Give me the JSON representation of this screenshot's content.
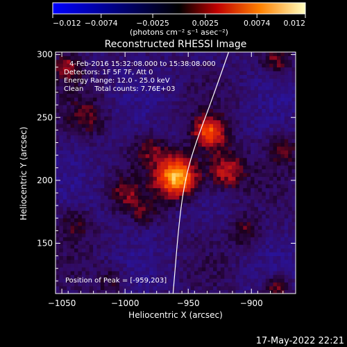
{
  "chart_data": {
    "type": "heatmap",
    "title": "Reconstructed RHESSI Image",
    "xlabel": "Heliocentric X (arcsec)",
    "ylabel": "Heliocentric Y (arcsec)",
    "xlim": [
      -1055,
      -865
    ],
    "ylim": [
      110,
      302
    ],
    "x_ticks": [
      {
        "value": -1050,
        "label": "−1050"
      },
      {
        "value": -1000,
        "label": "−1000"
      },
      {
        "value": -950,
        "label": "−950"
      },
      {
        "value": -900,
        "label": "−900"
      }
    ],
    "y_ticks": [
      {
        "value": 150,
        "label": "150"
      },
      {
        "value": 200,
        "label": "200"
      },
      {
        "value": 250,
        "label": "250"
      },
      {
        "value": 300,
        "label": "300"
      }
    ],
    "colorbar": {
      "range": [
        -0.012,
        0.012
      ],
      "ticks": [
        {
          "value": -0.012,
          "label": "−0.012"
        },
        {
          "value": -0.0074,
          "label": "−0.0074"
        },
        {
          "value": -0.0025,
          "label": "−0.0025"
        },
        {
          "value": 0.0025,
          "label": "0.0025"
        },
        {
          "value": 0.0074,
          "label": "0.0074"
        },
        {
          "value": 0.012,
          "label": "0.012"
        }
      ],
      "units_label": "(photons cm⁻² s⁻¹ asec⁻²)"
    },
    "info_lines": [
      "4-Feb-2016 15:32:08.000 to 15:38:08.000",
      "Detectors: 1F 5F 7F, Att 0",
      "Energy Range: 12.0 - 25.0 keV",
      "Clean     Total counts: 7.76E+03"
    ],
    "peak_label": "Position of Peak = [-959,203]",
    "peak": {
      "x": -959,
      "y": 203,
      "value": 0.012
    },
    "sources": [
      {
        "x": -959,
        "y": 203,
        "amplitude": 0.0125,
        "sigma": 11
      },
      {
        "x": -933,
        "y": 238,
        "amplitude": 0.0085,
        "sigma": 9
      },
      {
        "x": -920,
        "y": 208,
        "amplitude": 0.0065,
        "sigma": 11
      },
      {
        "x": -980,
        "y": 225,
        "amplitude": 0.0035,
        "sigma": 9
      },
      {
        "x": -1030,
        "y": 250,
        "amplitude": 0.003,
        "sigma": 10
      },
      {
        "x": -1045,
        "y": 290,
        "amplitude": 0.0045,
        "sigma": 8
      },
      {
        "x": -1000,
        "y": 190,
        "amplitude": 0.0035,
        "sigma": 9
      },
      {
        "x": -905,
        "y": 160,
        "amplitude": 0.0035,
        "sigma": 8
      },
      {
        "x": -1040,
        "y": 165,
        "amplitude": 0.003,
        "sigma": 9
      },
      {
        "x": -875,
        "y": 225,
        "amplitude": 0.0035,
        "sigma": 8
      },
      {
        "x": -880,
        "y": 115,
        "amplitude": 0.0045,
        "sigma": 7
      },
      {
        "x": -880,
        "y": 295,
        "amplitude": 0.004,
        "sigma": 8
      },
      {
        "x": -985,
        "y": 175,
        "amplitude": 0.003,
        "sigma": 7
      },
      {
        "x": -1010,
        "y": 120,
        "amplitude": 0.0025,
        "sigma": 8
      }
    ],
    "limb_curve": [
      {
        "x": -962,
        "y": 110
      },
      {
        "x": -957,
        "y": 170
      },
      {
        "x": -952,
        "y": 203
      },
      {
        "x": -944,
        "y": 230
      },
      {
        "x": -932,
        "y": 262
      },
      {
        "x": -918,
        "y": 302
      }
    ],
    "grid": false
  },
  "footer_timestamp": "17-May-2022 22:21",
  "colors": {
    "background": "#000000",
    "text": "#ffffff",
    "limb": "#ffffff"
  }
}
